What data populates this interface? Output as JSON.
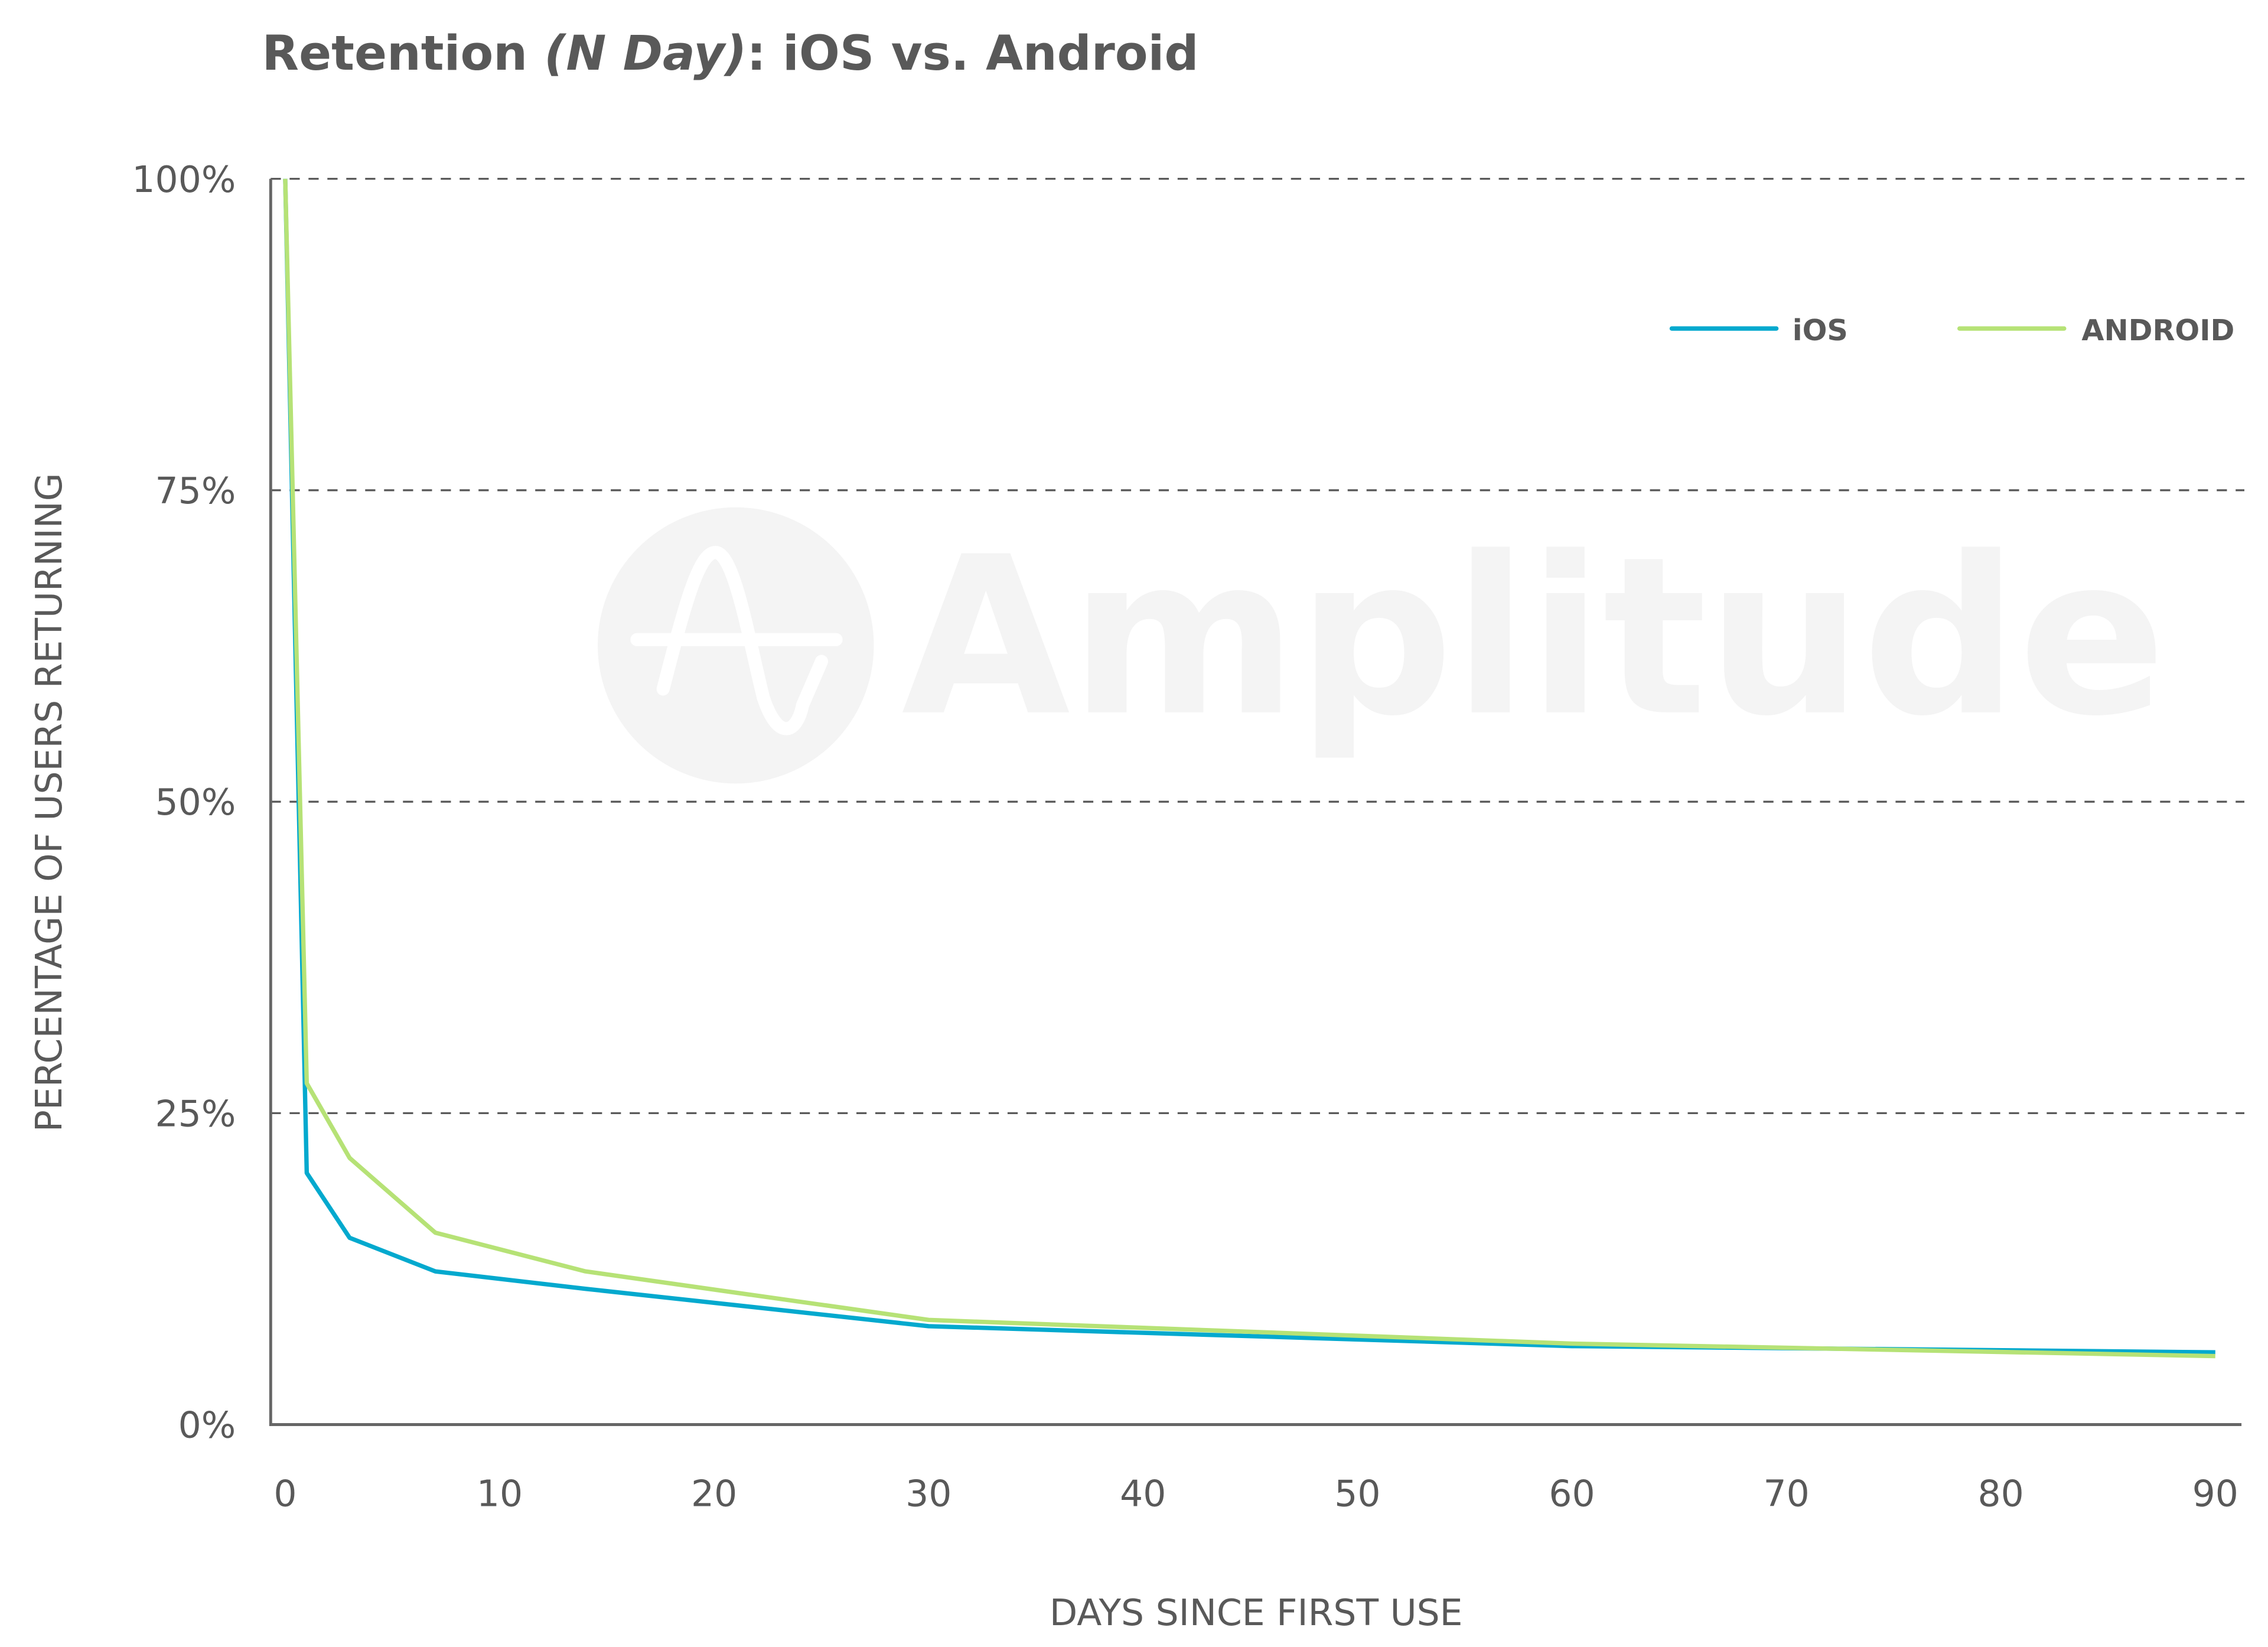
{
  "chart_data": {
    "type": "line",
    "title": {
      "part1": "Retention ",
      "part2": "(N Day)",
      "part3": ": iOS vs. Android"
    },
    "xlabel": "DAYS SINCE FIRST USE",
    "ylabel": "PERCENTAGE OF USERS RETURNING",
    "xlim": [
      0,
      90
    ],
    "ylim": [
      0,
      100
    ],
    "x_ticks": [
      0,
      10,
      20,
      30,
      40,
      50,
      60,
      70,
      80,
      90
    ],
    "x_tick_labels": [
      "0",
      "10",
      "20",
      "30",
      "40",
      "50",
      "60",
      "70",
      "80",
      "90"
    ],
    "y_ticks": [
      0,
      25,
      50,
      75,
      100
    ],
    "y_tick_labels": [
      "0%",
      "25%",
      "50%",
      "75%",
      "100%"
    ],
    "grid": "horizontal dashed",
    "legend_position": "top-right",
    "series": [
      {
        "name": "iOS",
        "color": "#03a9ce",
        "x": [
          0,
          1,
          3,
          7,
          14,
          30,
          60,
          90
        ],
        "y": [
          100,
          20.2,
          15.0,
          12.3,
          10.9,
          7.9,
          6.3,
          5.8
        ]
      },
      {
        "name": "ANDROID",
        "color": "#b6e276",
        "x": [
          0,
          1,
          3,
          7,
          14,
          30,
          60,
          90
        ],
        "y": [
          100,
          27.4,
          21.4,
          15.4,
          12.3,
          8.4,
          6.5,
          5.5
        ]
      }
    ],
    "watermark": "Amplitude"
  }
}
